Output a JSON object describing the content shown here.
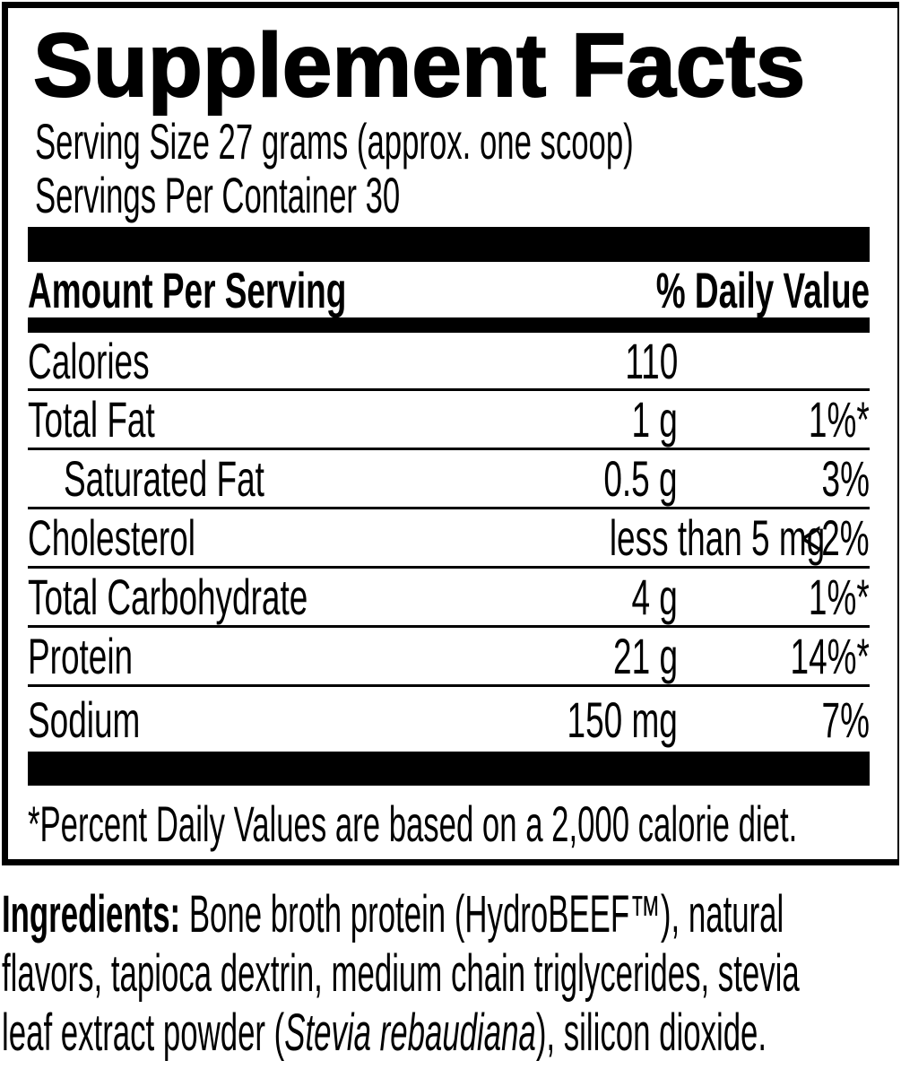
{
  "colors": {
    "ink": "#000000",
    "paper": "#ffffff"
  },
  "label": {
    "title": "Supplement Facts",
    "serving_size": "Serving Size 27 grams (approx. one scoop)",
    "servings_per_container": "Servings Per Container 30",
    "columns": {
      "amount_header": "Amount Per Serving",
      "dv_header": "% Daily Value"
    },
    "rows": [
      {
        "name": "Calories",
        "amount": "110",
        "dv": "",
        "indent": false
      },
      {
        "name": "Total Fat",
        "amount": "1 g",
        "dv": "1%*",
        "indent": false
      },
      {
        "name": "Saturated Fat",
        "amount": "0.5 g",
        "dv": "3%",
        "indent": true
      },
      {
        "name": "Cholesterol",
        "amount": "less than 5 mg",
        "dv": "<2%",
        "indent": false
      },
      {
        "name": "Total Carbohydrate",
        "amount": "4 g",
        "dv": "1%*",
        "indent": false
      },
      {
        "name": "Protein",
        "amount": "21 g",
        "dv": "14%*",
        "indent": false
      },
      {
        "name": "Sodium",
        "amount": "150 mg",
        "dv": "7%",
        "indent": false
      }
    ],
    "footnote": "*Percent Daily Values are based on a 2,000 calorie diet."
  },
  "ingredients": {
    "segments": [
      {
        "text": "Ingredients:",
        "style": "bold"
      },
      {
        "text": " Bone broth protein (HydroBEEF™), natural\nflavors, tapioca dextrin, medium chain triglycerides, stevia\nleaf extract powder (",
        "style": "normal"
      },
      {
        "text": "Stevia rebaudiana",
        "style": "italic"
      },
      {
        "text": "), silicon dioxide.",
        "style": "normal"
      }
    ]
  }
}
